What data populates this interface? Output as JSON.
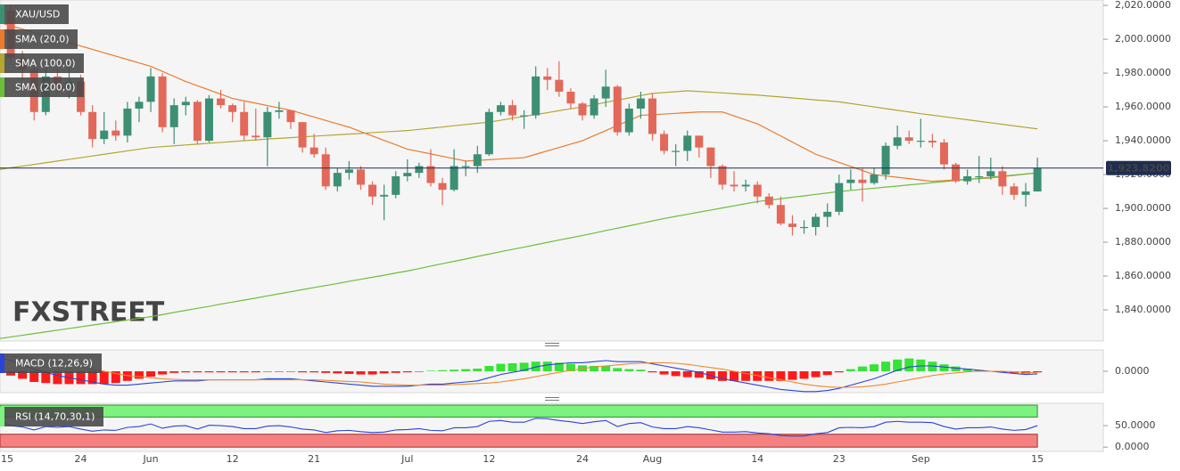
{
  "chart_data": [
    {
      "type": "candlestick",
      "name": "XAU/USD",
      "watermark": [
        "FX",
        "STREET"
      ],
      "categories": [
        "15",
        null,
        null,
        null,
        null,
        null,
        null,
        "24",
        null,
        null,
        null,
        null,
        null,
        "Jun",
        null,
        null,
        null,
        null,
        null,
        null,
        "12",
        null,
        null,
        null,
        null,
        null,
        null,
        "21",
        null,
        null,
        null,
        null,
        null,
        null,
        null,
        "Jul",
        null,
        null,
        null,
        null,
        null,
        null,
        "12",
        null,
        null,
        null,
        null,
        null,
        null,
        null,
        "24",
        null,
        null,
        null,
        null,
        null,
        "Aug",
        null,
        null,
        null,
        null,
        null,
        null,
        null,
        null,
        "14",
        null,
        null,
        null,
        null,
        null,
        null,
        "23",
        null,
        null,
        null,
        null,
        null,
        null,
        "Sep",
        null,
        null,
        null,
        null,
        null,
        null,
        null,
        null,
        null,
        "15"
      ],
      "open": [
        2011,
        2017,
        1989,
        1982,
        1957,
        1978,
        1971,
        1975,
        1957,
        1941,
        1946,
        1943,
        1959,
        1963,
        1978,
        1948,
        1961,
        1963,
        1940,
        1965,
        1961,
        1957,
        1943,
        1942,
        1957,
        1958,
        1951,
        1936,
        1932,
        1913,
        1921,
        1923,
        1914,
        1907,
        1908,
        1919,
        1921,
        1925,
        1915,
        1911,
        1925,
        1925,
        1932,
        1957,
        1961,
        1955,
        1955,
        1978,
        1976,
        1969,
        1962,
        1955,
        1965,
        1972,
        1945,
        1959,
        1965,
        1944,
        1934,
        1934,
        1943,
        1936,
        1925,
        1914,
        1913,
        1914,
        1907,
        1902,
        1891,
        1889,
        1889,
        1895,
        1898,
        1915,
        1917,
        1915,
        1920,
        1937,
        1942,
        1940,
        1940,
        1939,
        1926,
        1916,
        1919,
        1919,
        1922,
        1913,
        1908,
        1910
      ],
      "high": [
        2022,
        2020,
        1993,
        1985,
        1984,
        1983,
        1984,
        1979,
        1961,
        1957,
        1952,
        1963,
        1966,
        1983,
        1980,
        1965,
        1966,
        1964,
        1967,
        1970,
        1962,
        1963,
        1959,
        1960,
        1963,
        1958,
        1951,
        1944,
        1936,
        1924,
        1928,
        1925,
        1916,
        1914,
        1922,
        1929,
        1927,
        1935,
        1918,
        1935,
        1928,
        1937,
        1959,
        1963,
        1964,
        1958,
        1984,
        1983,
        1987,
        1971,
        1963,
        1967,
        1982,
        1973,
        1962,
        1969,
        1968,
        1946,
        1938,
        1946,
        1943,
        1936,
        1926,
        1922,
        1917,
        1916,
        1909,
        1907,
        1896,
        1893,
        1897,
        1903,
        1920,
        1923,
        1924,
        1924,
        1939,
        1949,
        1946,
        1953,
        1944,
        1941,
        1927,
        1923,
        1931,
        1930,
        1925,
        1915,
        1915,
        1930
      ],
      "low": [
        2005,
        1985,
        1976,
        1952,
        1955,
        1968,
        1965,
        1955,
        1936,
        1938,
        1940,
        1939,
        1951,
        1957,
        1945,
        1938,
        1955,
        1938,
        1939,
        1959,
        1951,
        1940,
        1940,
        1925,
        1953,
        1947,
        1933,
        1930,
        1911,
        1910,
        1917,
        1911,
        1902,
        1893,
        1906,
        1916,
        1918,
        1913,
        1902,
        1910,
        1919,
        1921,
        1931,
        1955,
        1952,
        1947,
        1953,
        1970,
        1966,
        1959,
        1952,
        1953,
        1960,
        1943,
        1943,
        1953,
        1940,
        1932,
        1925,
        1928,
        1930,
        1918,
        1911,
        1910,
        1910,
        1903,
        1900,
        1890,
        1884,
        1885,
        1884,
        1889,
        1896,
        1911,
        1904,
        1914,
        1917,
        1935,
        1938,
        1936,
        1936,
        1923,
        1915,
        1914,
        1915,
        1917,
        1908,
        1905,
        1901,
        1910
      ],
      "close": [
        2017,
        1989,
        1982,
        1957,
        1978,
        1971,
        1975,
        1957,
        1941,
        1946,
        1943,
        1959,
        1963,
        1978,
        1948,
        1961,
        1963,
        1940,
        1965,
        1961,
        1957,
        1943,
        1942,
        1957,
        1958,
        1951,
        1936,
        1932,
        1913,
        1921,
        1923,
        1914,
        1907,
        1908,
        1919,
        1921,
        1925,
        1915,
        1911,
        1925,
        1925,
        1932,
        1957,
        1961,
        1955,
        1955,
        1978,
        1976,
        1969,
        1962,
        1955,
        1965,
        1972,
        1945,
        1959,
        1965,
        1944,
        1934,
        1934,
        1943,
        1936,
        1925,
        1914,
        1913,
        1914,
        1907,
        1902,
        1891,
        1889,
        1889,
        1895,
        1898,
        1915,
        1917,
        1915,
        1920,
        1937,
        1942,
        1940,
        1940,
        1939,
        1926,
        1916,
        1919,
        1919,
        1922,
        1913,
        1908,
        1910,
        1923.82
      ],
      "up_color": "#3d8f74",
      "down_color": "#e2695a",
      "series": [
        {
          "name": "SMA (20,0)",
          "color": "#ec7a2c",
          "values": [
            2010,
            2008,
            2006,
            2004,
            2002,
            2000,
            1998,
            1996,
            1994,
            1992,
            1990,
            1988,
            1986,
            1984,
            1981,
            1978,
            1975,
            1972.5,
            1970,
            1967.5,
            1965,
            1963.6,
            1962.2,
            1960.8,
            1959.4,
            1958,
            1956,
            1954,
            1952,
            1950,
            1948,
            1945.4,
            1942.8,
            1940.2,
            1937.6,
            1935,
            1933.6,
            1932.2,
            1930.8,
            1929.4,
            1928,
            1928.4,
            1928.8,
            1929.2,
            1929.6,
            1930,
            1932,
            1934,
            1936,
            1938,
            1940,
            1943,
            1946,
            1949,
            1952,
            1955,
            1955.4,
            1955.8,
            1956.2,
            1956.6,
            1957,
            1957,
            1957,
            1954.7,
            1952.3,
            1950,
            1946.4,
            1942.8,
            1939.2,
            1935.6,
            1932,
            1929.6,
            1927.2,
            1924.8,
            1922.4,
            1920,
            1919.2,
            1918.4,
            1917.6,
            1916.8,
            1916,
            1916.4,
            1916.8,
            1917.2,
            1917.6,
            1918,
            1918.8,
            1919.5,
            1920.3,
            1921
          ]
        },
        {
          "name": "SMA (100,0)",
          "color": "#b3a632",
          "values": [
            1923,
            1924,
            1925,
            1926,
            1927,
            1928,
            1929,
            1930,
            1931,
            1932,
            1933,
            1934,
            1935,
            1936,
            1936.5,
            1937,
            1937.5,
            1938,
            1938.5,
            1939,
            1939.5,
            1940,
            1940.5,
            1941,
            1941.4,
            1941.8,
            1942.3,
            1942.7,
            1943.1,
            1943.5,
            1943.9,
            1944.3,
            1944.8,
            1945.2,
            1945.6,
            1946,
            1946.7,
            1947.4,
            1948.1,
            1948.9,
            1949.6,
            1950.3,
            1951,
            1952.1,
            1953.3,
            1954.4,
            1955.5,
            1956.6,
            1957.8,
            1958.9,
            1960,
            1961.3,
            1962.7,
            1964,
            1965.3,
            1966.7,
            1968,
            1968.5,
            1969,
            1969.5,
            1969.1,
            1968.7,
            1968.3,
            1967.8,
            1967.4,
            1967,
            1966.4,
            1965.9,
            1965.3,
            1964.7,
            1964.1,
            1963.6,
            1963,
            1962,
            1961,
            1960,
            1959,
            1958,
            1957,
            1956,
            1955.1,
            1954.2,
            1953.3,
            1952.4,
            1951.5,
            1950.6,
            1949.7,
            1948.8,
            1947.9,
            1947
          ]
        },
        {
          "name": "SMA (200,0)",
          "color": "#6cbf3a",
          "values": [
            1823,
            1824,
            1825,
            1826,
            1827,
            1828,
            1829,
            1830,
            1831,
            1832,
            1833,
            1834,
            1835,
            1836,
            1837.2,
            1838.5,
            1839.7,
            1840.9,
            1842.1,
            1843.4,
            1844.6,
            1845.8,
            1847,
            1848.3,
            1849.5,
            1850.7,
            1852,
            1853.2,
            1854.4,
            1855.6,
            1856.9,
            1858.1,
            1859.3,
            1860.5,
            1861.8,
            1863,
            1864.4,
            1865.9,
            1867.3,
            1868.7,
            1870.1,
            1871.6,
            1873,
            1874.4,
            1875.8,
            1877.1,
            1878.5,
            1879.9,
            1881.3,
            1882.6,
            1884,
            1885.4,
            1886.9,
            1888.3,
            1889.7,
            1891.1,
            1892.6,
            1894,
            1895.3,
            1896.5,
            1897.8,
            1899,
            1900.3,
            1901.5,
            1902.8,
            1904,
            1904.9,
            1905.7,
            1906.6,
            1907.4,
            1908.3,
            1909.1,
            1910,
            1910.6,
            1911.3,
            1911.9,
            1912.6,
            1913.2,
            1913.9,
            1914.5,
            1915.2,
            1915.8,
            1916.5,
            1917.1,
            1917.8,
            1918.4,
            1919.1,
            1919.7,
            1920.4,
            1921
          ]
        }
      ],
      "last_price": {
        "value": 1923.82,
        "label": "1,923.8200"
      },
      "last_price_color": "#1f2d50",
      "ylim": [
        1821.6,
        2023.2
      ],
      "yticks": [
        {
          "value": 1840,
          "label": "1,840.0000"
        },
        {
          "value": 1860,
          "label": "1,860.0000"
        },
        {
          "value": 1880,
          "label": "1,880.0000"
        },
        {
          "value": 1900,
          "label": "1,900.0000"
        },
        {
          "value": 1920,
          "label": "1,920.0000"
        },
        {
          "value": 1940,
          "label": "1,940.0000"
        },
        {
          "value": 1960,
          "label": "1,960.0000"
        },
        {
          "value": 1980,
          "label": "1,980.0000"
        },
        {
          "value": 2000,
          "label": "2,000.0000"
        },
        {
          "value": 2020,
          "label": "2,020.0000"
        }
      ]
    },
    {
      "type": "macd",
      "name": "MACD (12,26,9)",
      "color": "#2a44d8",
      "histogram": {
        "up_color": "#36e336",
        "down_color": "#ff1a1a",
        "values": [
          -1,
          -4,
          -7,
          -10,
          -11,
          -12,
          -12,
          -12,
          -12,
          -12,
          -11,
          -9,
          -7,
          -5,
          -3,
          -1.5,
          -1,
          -1,
          -1,
          -1,
          -1,
          -1,
          -1,
          -0.5,
          -0.5,
          -0.5,
          -1,
          -1,
          -1.5,
          -2,
          -2.5,
          -3,
          -3,
          -2,
          -1.5,
          -1,
          -0.5,
          0.5,
          1,
          1.5,
          2,
          2.5,
          5,
          7,
          7.5,
          8,
          9,
          9,
          8,
          7,
          5.5,
          5,
          5,
          3,
          2,
          1.5,
          -1,
          -3,
          -4.5,
          -5.5,
          -6,
          -7.5,
          -9,
          -9,
          -9,
          -9,
          -9,
          -9,
          -8,
          -7,
          -5.5,
          -3.5,
          -1,
          2,
          4.5,
          6.5,
          9,
          11,
          12,
          11,
          9,
          6.5,
          4.5,
          2.5,
          1,
          0,
          -1,
          -1.5,
          -2,
          -1
        ]
      },
      "series": [
        {
          "color": "#2a44d8",
          "values": [
            13,
            10,
            6,
            2,
            -1,
            -4,
            -6,
            -8,
            -10,
            -12,
            -13,
            -13,
            -12,
            -11,
            -10,
            -9,
            -9,
            -9,
            -8,
            -8,
            -8,
            -8,
            -8,
            -7,
            -7,
            -7,
            -8,
            -9,
            -10,
            -11,
            -12,
            -13,
            -14,
            -14,
            -14,
            -14,
            -13,
            -12,
            -12,
            -11,
            -10,
            -9,
            -6,
            -3,
            -1,
            1,
            4,
            6,
            7,
            8,
            8,
            9,
            10,
            9,
            9,
            9,
            7,
            5,
            3,
            1,
            -1,
            -4,
            -7,
            -9,
            -11,
            -13,
            -15,
            -17,
            -18,
            -19,
            -19,
            -18,
            -16,
            -13,
            -10,
            -7,
            -3,
            1,
            4,
            5,
            5,
            4,
            3,
            2,
            1,
            0,
            -1,
            -2,
            -3,
            -2.5
          ]
        },
        {
          "color": "#f0892b",
          "values": [
            14,
            14,
            13,
            12,
            10,
            8,
            6,
            4,
            2,
            0,
            -2,
            -4,
            -5,
            -6,
            -7,
            -7.5,
            -8,
            -8,
            -8,
            -8,
            -8,
            -8,
            -8,
            -8,
            -8,
            -8,
            -8,
            -8,
            -8.5,
            -9,
            -9.5,
            -10,
            -11,
            -12,
            -12.5,
            -13,
            -13,
            -13,
            -13,
            -12.5,
            -12,
            -11.5,
            -11,
            -10,
            -8.5,
            -7,
            -5,
            -3,
            -1,
            1,
            2.5,
            4,
            5,
            6,
            7,
            7.5,
            8,
            8,
            7.5,
            6.5,
            5,
            3.5,
            2,
            0,
            -2,
            -4,
            -6,
            -8,
            -10,
            -12,
            -13.5,
            -14.5,
            -15,
            -15,
            -14.5,
            -13.5,
            -12,
            -10,
            -8,
            -6,
            -4,
            -2.5,
            -1.5,
            -0.5,
            0,
            0,
            0,
            -0.5,
            -1,
            -1.5
          ]
        }
      ],
      "ylim": [
        -20,
        20
      ],
      "yticks": [
        {
          "value": 0,
          "label": "0.0000"
        }
      ]
    },
    {
      "type": "rsi",
      "name": "RSI (14,70,30,1)",
      "color": "#2a44d8",
      "values": [
        60,
        50,
        47,
        40,
        48,
        46,
        48,
        42,
        37,
        40,
        39,
        46,
        48,
        54,
        44,
        49,
        50,
        42,
        51,
        50,
        48,
        43,
        43,
        49,
        50,
        47,
        42,
        40,
        34,
        38,
        39,
        36,
        34,
        35,
        40,
        41,
        43,
        39,
        38,
        45,
        45,
        48,
        60,
        62,
        58,
        58,
        67,
        66,
        62,
        59,
        55,
        59,
        62,
        48,
        55,
        57,
        47,
        43,
        43,
        48,
        45,
        40,
        35,
        35,
        36,
        33,
        31,
        27,
        26,
        26,
        31,
        34,
        45,
        46,
        45,
        48,
        58,
        60,
        58,
        58,
        57,
        48,
        42,
        45,
        45,
        47,
        42,
        39,
        41,
        50
      ],
      "overbought": 70,
      "oversold": 30,
      "overbought_color": "#7ef27e",
      "oversold_color": "#f58080",
      "ylim": [
        -10,
        102
      ],
      "yticks": [
        {
          "value": 0,
          "label": "0.0000"
        },
        {
          "value": 50,
          "label": "50.0000"
        }
      ]
    }
  ]
}
